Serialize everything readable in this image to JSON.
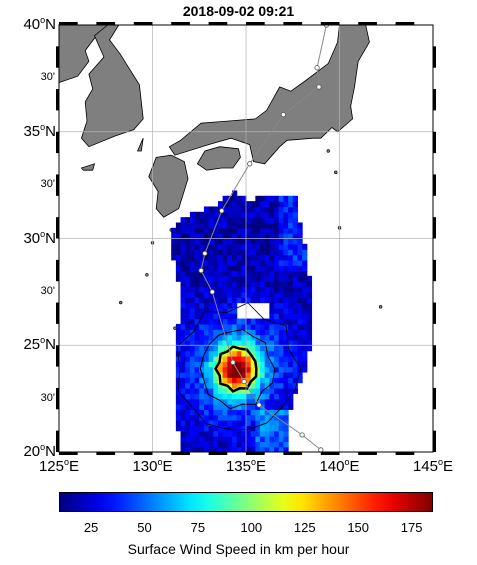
{
  "map": {
    "title": "2018-09-02 09:21",
    "lat_labels": [
      {
        "deg": "20",
        "hemi": "N"
      },
      {
        "deg": "25",
        "hemi": "N"
      },
      {
        "deg": "30",
        "hemi": "N"
      },
      {
        "deg": "35",
        "hemi": "N"
      },
      {
        "deg": "40",
        "hemi": "N"
      }
    ],
    "lat_minute_label": "30'",
    "lon_labels": [
      {
        "deg": "125",
        "hemi": "E"
      },
      {
        "deg": "130",
        "hemi": "E"
      },
      {
        "deg": "135",
        "hemi": "E"
      },
      {
        "deg": "140",
        "hemi": "E"
      },
      {
        "deg": "145",
        "hemi": "E"
      }
    ],
    "extent": {
      "lon": [
        125,
        145
      ],
      "lat": [
        20,
        40
      ]
    },
    "storm_center": {
      "lon": 134.5,
      "lat": 23.9
    },
    "track_points": [
      {
        "lon": 139.0,
        "lat": 20.1
      },
      {
        "lon": 138.0,
        "lat": 20.8
      },
      {
        "lon": 135.7,
        "lat": 22.2
      },
      {
        "lon": 134.9,
        "lat": 23.3
      },
      {
        "lon": 134.3,
        "lat": 24.2
      },
      {
        "lon": 133.2,
        "lat": 27.5
      },
      {
        "lon": 132.6,
        "lat": 28.5
      },
      {
        "lon": 132.8,
        "lat": 29.3
      },
      {
        "lon": 133.7,
        "lat": 31.3
      },
      {
        "lon": 135.2,
        "lat": 33.5
      },
      {
        "lon": 137.0,
        "lat": 35.8
      },
      {
        "lon": 138.9,
        "lat": 37.1
      },
      {
        "lon": 138.8,
        "lat": 38.0
      },
      {
        "lon": 139.3,
        "lat": 40.0
      }
    ],
    "colors": {
      "land": "#7f7f7f",
      "grid": "#b3b3b3",
      "track": "#888888"
    }
  },
  "colorbar": {
    "min": 10,
    "max": 185,
    "ticks": [
      "25",
      "50",
      "75",
      "100",
      "125",
      "150",
      "175"
    ],
    "label": "Surface Wind Speed in km per hour",
    "colormap": "jet"
  }
}
